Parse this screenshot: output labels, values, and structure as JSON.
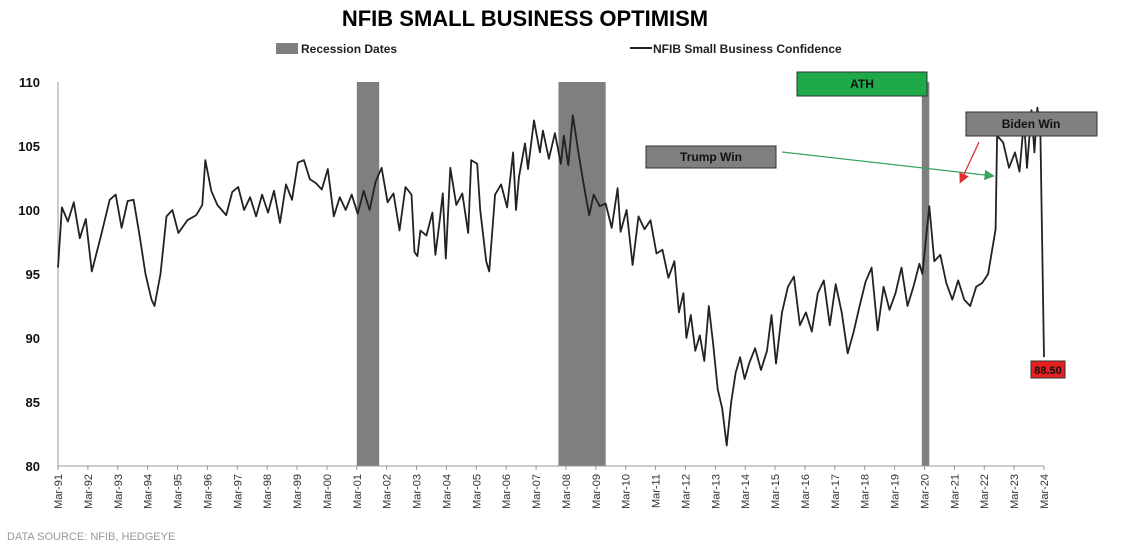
{
  "chart_data": {
    "type": "line",
    "title": "NFIB SMALL BUSINESS OPTIMISM",
    "source": "DATA SOURCE: NFIB, HEDGEYE",
    "legend": {
      "placement": "top",
      "items": [
        {
          "label": "Recession Dates",
          "color": "#7f7f7f",
          "kind": "bar"
        },
        {
          "label": "NFIB Small Business Confidence",
          "color": "#222222",
          "kind": "line"
        }
      ]
    },
    "y_range": [
      80,
      110
    ],
    "y_ticks": [
      "80",
      "85",
      "90",
      "95",
      "100",
      "105",
      "110"
    ],
    "x_range": [
      1991.17,
      2024.17
    ],
    "x_ticks": [
      "Mar-91",
      "Mar-92",
      "Mar-93",
      "Mar-94",
      "Mar-95",
      "Mar-96",
      "Mar-97",
      "Mar-98",
      "Mar-99",
      "Mar-00",
      "Mar-01",
      "Mar-02",
      "Mar-03",
      "Mar-04",
      "Mar-05",
      "Mar-06",
      "Mar-07",
      "Mar-08",
      "Mar-09",
      "Mar-10",
      "Mar-11",
      "Mar-12",
      "Mar-13",
      "Mar-14",
      "Mar-15",
      "Mar-16",
      "Mar-17",
      "Mar-18",
      "Mar-19",
      "Mar-20",
      "Mar-21",
      "Mar-22",
      "Mar-23",
      "Mar-24"
    ],
    "recessions": [
      {
        "start": 2001.17,
        "end": 2001.92
      },
      {
        "start": 2007.92,
        "end": 2009.5
      },
      {
        "start": 2020.08,
        "end": 2020.33
      }
    ],
    "series": [
      {
        "color": "#222222",
        "points": [
          [
            1991.17,
            95.5
          ],
          [
            1991.3,
            100.2
          ],
          [
            1991.5,
            99.1
          ],
          [
            1991.7,
            100.6
          ],
          [
            1991.9,
            97.8
          ],
          [
            1992.1,
            99.3
          ],
          [
            1992.3,
            95.2
          ],
          [
            1992.6,
            97.9
          ],
          [
            1992.9,
            100.8
          ],
          [
            1993.1,
            101.2
          ],
          [
            1993.3,
            98.6
          ],
          [
            1993.5,
            100.7
          ],
          [
            1993.7,
            100.8
          ],
          [
            1993.9,
            98.0
          ],
          [
            1994.1,
            95.0
          ],
          [
            1994.3,
            93.0
          ],
          [
            1994.4,
            92.5
          ],
          [
            1994.6,
            95.0
          ],
          [
            1994.8,
            99.5
          ],
          [
            1995.0,
            100.0
          ],
          [
            1995.2,
            98.2
          ],
          [
            1995.5,
            99.2
          ],
          [
            1995.8,
            99.6
          ],
          [
            1996.0,
            100.4
          ],
          [
            1996.1,
            103.9
          ],
          [
            1996.3,
            101.5
          ],
          [
            1996.5,
            100.4
          ],
          [
            1996.8,
            99.6
          ],
          [
            1997.0,
            101.4
          ],
          [
            1997.2,
            101.8
          ],
          [
            1997.4,
            100.0
          ],
          [
            1997.6,
            101.0
          ],
          [
            1997.8,
            99.5
          ],
          [
            1998.0,
            101.2
          ],
          [
            1998.2,
            99.8
          ],
          [
            1998.4,
            101.5
          ],
          [
            1998.6,
            99.0
          ],
          [
            1998.8,
            102.0
          ],
          [
            1999.0,
            100.8
          ],
          [
            1999.2,
            103.7
          ],
          [
            1999.4,
            103.9
          ],
          [
            1999.6,
            102.4
          ],
          [
            1999.8,
            102.1
          ],
          [
            2000.0,
            101.6
          ],
          [
            2000.2,
            103.2
          ],
          [
            2000.4,
            99.5
          ],
          [
            2000.6,
            101.0
          ],
          [
            2000.8,
            100.0
          ],
          [
            2001.0,
            101.2
          ],
          [
            2001.2,
            99.7
          ],
          [
            2001.4,
            101.5
          ],
          [
            2001.6,
            100.0
          ],
          [
            2001.8,
            102.2
          ],
          [
            2002.0,
            103.3
          ],
          [
            2002.2,
            100.6
          ],
          [
            2002.4,
            101.3
          ],
          [
            2002.6,
            98.4
          ],
          [
            2002.8,
            101.8
          ],
          [
            2003.0,
            101.2
          ],
          [
            2003.1,
            96.7
          ],
          [
            2003.2,
            96.4
          ],
          [
            2003.3,
            98.4
          ],
          [
            2003.5,
            98.0
          ],
          [
            2003.7,
            99.8
          ],
          [
            2003.8,
            96.5
          ],
          [
            2003.95,
            99.3
          ],
          [
            2004.05,
            101.3
          ],
          [
            2004.15,
            96.2
          ],
          [
            2004.3,
            103.3
          ],
          [
            2004.5,
            100.4
          ],
          [
            2004.7,
            101.3
          ],
          [
            2004.9,
            98.2
          ],
          [
            2005.0,
            103.9
          ],
          [
            2005.2,
            103.6
          ],
          [
            2005.3,
            100.0
          ],
          [
            2005.5,
            96.0
          ],
          [
            2005.6,
            95.2
          ],
          [
            2005.8,
            101.2
          ],
          [
            2006.0,
            102.0
          ],
          [
            2006.2,
            100.2
          ],
          [
            2006.4,
            104.5
          ],
          [
            2006.5,
            100.0
          ],
          [
            2006.6,
            102.6
          ],
          [
            2006.8,
            105.2
          ],
          [
            2006.9,
            103.2
          ],
          [
            2007.1,
            107.0
          ],
          [
            2007.3,
            104.5
          ],
          [
            2007.4,
            106.2
          ],
          [
            2007.6,
            104.0
          ],
          [
            2007.8,
            106.0
          ],
          [
            2008.0,
            103.6
          ],
          [
            2008.1,
            105.8
          ],
          [
            2008.25,
            103.5
          ],
          [
            2008.4,
            107.4
          ],
          [
            2008.6,
            104.3
          ],
          [
            2008.8,
            101.5
          ],
          [
            2008.95,
            99.6
          ],
          [
            2009.1,
            101.2
          ],
          [
            2009.3,
            100.3
          ],
          [
            2009.5,
            100.5
          ],
          [
            2009.7,
            98.6
          ],
          [
            2009.9,
            101.7
          ],
          [
            2010.0,
            98.3
          ],
          [
            2010.2,
            100.0
          ],
          [
            2010.4,
            95.7
          ],
          [
            2010.6,
            99.5
          ],
          [
            2010.8,
            98.5
          ],
          [
            2011.0,
            99.2
          ],
          [
            2011.2,
            96.6
          ],
          [
            2011.4,
            96.9
          ],
          [
            2011.6,
            94.7
          ],
          [
            2011.8,
            96.0
          ],
          [
            2011.95,
            92.0
          ],
          [
            2012.1,
            93.5
          ],
          [
            2012.2,
            90.0
          ],
          [
            2012.35,
            91.8
          ],
          [
            2012.5,
            89.0
          ],
          [
            2012.65,
            90.2
          ],
          [
            2012.8,
            88.2
          ],
          [
            2012.95,
            92.5
          ],
          [
            2013.1,
            89.5
          ],
          [
            2013.25,
            86.0
          ],
          [
            2013.4,
            84.5
          ],
          [
            2013.55,
            81.6
          ],
          [
            2013.7,
            85.0
          ],
          [
            2013.85,
            87.3
          ],
          [
            2014.0,
            88.5
          ],
          [
            2014.15,
            86.8
          ],
          [
            2014.3,
            88.0
          ],
          [
            2014.5,
            89.2
          ],
          [
            2014.7,
            87.5
          ],
          [
            2014.9,
            89.0
          ],
          [
            2015.05,
            91.8
          ],
          [
            2015.2,
            88.0
          ],
          [
            2015.4,
            92.0
          ],
          [
            2015.6,
            94.0
          ],
          [
            2015.8,
            94.8
          ],
          [
            2016.0,
            91.0
          ],
          [
            2016.2,
            92.0
          ],
          [
            2016.4,
            90.5
          ],
          [
            2016.6,
            93.5
          ],
          [
            2016.8,
            94.5
          ],
          [
            2017.0,
            91.0
          ],
          [
            2017.2,
            94.2
          ],
          [
            2017.4,
            92.0
          ],
          [
            2017.6,
            88.8
          ],
          [
            2017.8,
            90.5
          ],
          [
            2018.0,
            92.5
          ],
          [
            2018.2,
            94.4
          ],
          [
            2018.4,
            95.5
          ],
          [
            2018.6,
            90.6
          ],
          [
            2018.8,
            94.0
          ],
          [
            2019.0,
            92.2
          ],
          [
            2019.2,
            93.5
          ],
          [
            2019.4,
            95.5
          ],
          [
            2019.6,
            92.5
          ],
          [
            2019.8,
            94.0
          ],
          [
            2020.0,
            95.8
          ],
          [
            2020.1,
            95.0
          ],
          [
            2020.33,
            100.3
          ],
          [
            2020.5,
            96.0
          ],
          [
            2020.7,
            96.5
          ],
          [
            2020.9,
            94.3
          ],
          [
            2021.1,
            93.0
          ],
          [
            2021.3,
            94.5
          ],
          [
            2021.5,
            93.0
          ],
          [
            2021.7,
            92.5
          ],
          [
            2021.9,
            94.0
          ],
          [
            2022.1,
            94.3
          ],
          [
            2022.3,
            95.0
          ],
          [
            2022.55,
            98.5
          ],
          [
            2022.6,
            105.8
          ],
          [
            2022.8,
            105.3
          ],
          [
            2023.0,
            103.3
          ],
          [
            2023.2,
            104.5
          ],
          [
            2023.35,
            103.0
          ],
          [
            2023.5,
            107.0
          ],
          [
            2023.6,
            103.3
          ],
          [
            2023.75,
            107.8
          ],
          [
            2023.85,
            104.5
          ],
          [
            2023.95,
            108.0
          ],
          [
            2024.05,
            106.0
          ],
          [
            2024.17,
            88.5
          ]
        ]
      }
    ],
    "annotations": [
      {
        "label": "ATH",
        "fill": "#1faa4a",
        "x": 2023.95,
        "y": 108.8
      },
      {
        "label": "Trump Win",
        "fill": "#7f7f7f",
        "x": 2022.55,
        "y": 102.5,
        "arrow": "#3aa55c"
      },
      {
        "label": "Biden Win",
        "fill": "#7f7f7f",
        "x": 2021.3,
        "y": 102.0,
        "arrow": "#e03030"
      },
      {
        "label": "88.50",
        "fill": "#e62020",
        "x": 2024.17,
        "y": 88.5
      }
    ]
  }
}
